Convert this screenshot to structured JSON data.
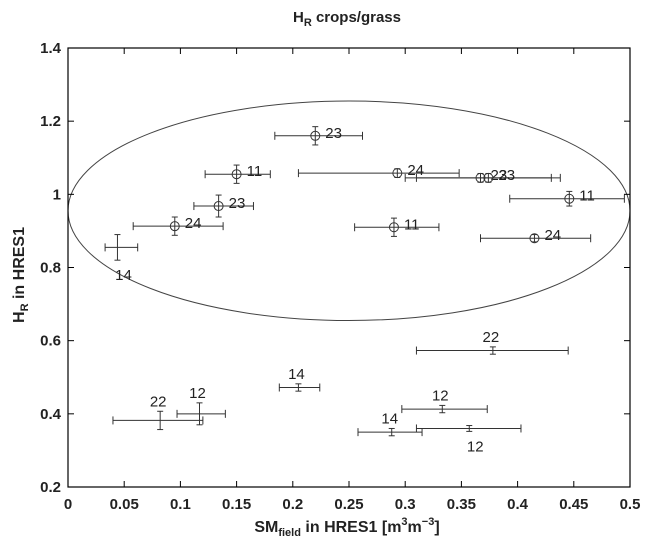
{
  "chart_data": {
    "type": "scatter",
    "title": {
      "main": "H",
      "sub": "R",
      "rest": " crops/grass"
    },
    "xlabel": {
      "main": "SM",
      "sub": "field",
      "rest": " in HRES1 [m",
      "sup1": "3",
      "mid": "m",
      "sup2": "−3",
      "end": "]"
    },
    "ylabel": {
      "main": "H",
      "sub": "R",
      "rest": " in HRES1"
    },
    "xlim": [
      0,
      0.5
    ],
    "ylim": [
      0.2,
      1.4
    ],
    "xticks": [
      "0",
      "0.05",
      "0.1",
      "0.15",
      "0.2",
      "0.25",
      "0.3",
      "0.35",
      "0.4",
      "0.45",
      "0.5"
    ],
    "yticks": [
      "0.2",
      "0.4",
      "0.6",
      "0.8",
      "1",
      "1.2",
      "1.4"
    ],
    "grid": false,
    "ellipse": {
      "cx": 0.25,
      "cy": 0.955,
      "rx": 0.25,
      "ry": 0.3
    },
    "points": [
      {
        "x": 0.22,
        "y": 1.16,
        "xerr": [
          0.184,
          0.262
        ],
        "yerr": 0.025,
        "marker": "circle",
        "label": "23"
      },
      {
        "x": 0.15,
        "y": 1.055,
        "xerr": [
          0.122,
          0.18
        ],
        "yerr": 0.025,
        "marker": "circle",
        "label": "11"
      },
      {
        "x": 0.293,
        "y": 1.058,
        "xerr": [
          0.205,
          0.348
        ],
        "yerr": 0.012,
        "marker": "circle",
        "label": "24"
      },
      {
        "x": 0.367,
        "y": 1.045,
        "xerr": [
          0.3,
          0.43
        ],
        "yerr": 0.012,
        "marker": "circle",
        "label": "23"
      },
      {
        "x": 0.374,
        "y": 1.045,
        "xerr": [
          0.31,
          0.438
        ],
        "yerr": 0.012,
        "marker": "circle",
        "label": "23"
      },
      {
        "x": 0.134,
        "y": 0.968,
        "xerr": [
          0.112,
          0.165
        ],
        "yerr": 0.03,
        "marker": "circle",
        "label": "23"
      },
      {
        "x": 0.446,
        "y": 0.988,
        "xerr": [
          0.393,
          0.495
        ],
        "yerr": 0.02,
        "marker": "circle",
        "label": "11"
      },
      {
        "x": 0.095,
        "y": 0.913,
        "xerr": [
          0.058,
          0.138
        ],
        "yerr": 0.025,
        "marker": "circle",
        "label": "24"
      },
      {
        "x": 0.29,
        "y": 0.91,
        "xerr": [
          0.255,
          0.33
        ],
        "yerr": 0.025,
        "marker": "circle",
        "label": "11"
      },
      {
        "x": 0.415,
        "y": 0.88,
        "xerr": [
          0.367,
          0.465
        ],
        "yerr": 0.01,
        "marker": "circle",
        "label": "24"
      },
      {
        "x": 0.044,
        "y": 0.855,
        "xerr": [
          0.033,
          0.062
        ],
        "yerr": 0.035,
        "marker": "none",
        "label": "14"
      },
      {
        "x": 0.378,
        "y": 0.573,
        "xerr": [
          0.31,
          0.445
        ],
        "yerr": 0.01,
        "marker": "none",
        "label": "22"
      },
      {
        "x": 0.205,
        "y": 0.472,
        "xerr": [
          0.188,
          0.224
        ],
        "yerr": 0.01,
        "marker": "none",
        "label": "14"
      },
      {
        "x": 0.333,
        "y": 0.413,
        "xerr": [
          0.297,
          0.373
        ],
        "yerr": 0.01,
        "marker": "none",
        "label": "12"
      },
      {
        "x": 0.117,
        "y": 0.4,
        "xerr": [
          0.097,
          0.14
        ],
        "yerr": 0.03,
        "marker": "none",
        "label": "12"
      },
      {
        "x": 0.082,
        "y": 0.382,
        "xerr": [
          0.04,
          0.12
        ],
        "yerr": 0.025,
        "marker": "none",
        "label": "22"
      },
      {
        "x": 0.357,
        "y": 0.36,
        "xerr": [
          0.31,
          0.403
        ],
        "yerr": 0.008,
        "marker": "none",
        "label": "12"
      },
      {
        "x": 0.288,
        "y": 0.35,
        "xerr": [
          0.258,
          0.315
        ],
        "yerr": 0.01,
        "marker": "none",
        "label": "14"
      }
    ]
  }
}
